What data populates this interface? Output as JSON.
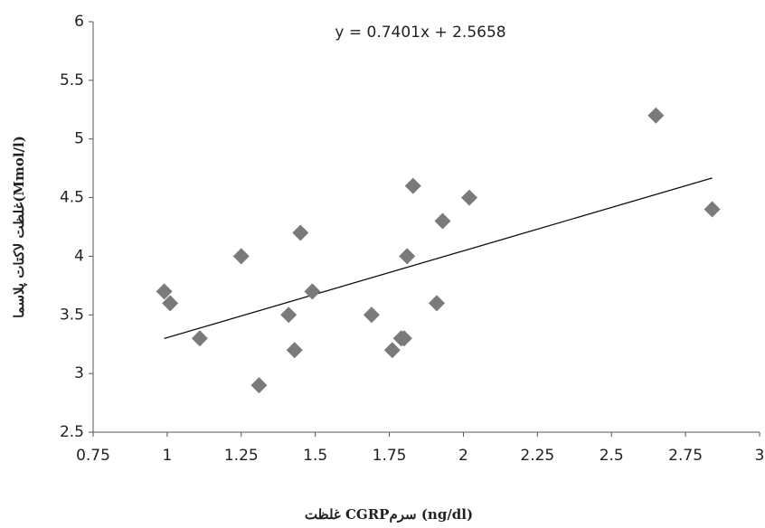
{
  "chart_data": {
    "type": "scatter",
    "x_label": "غلظت CGRPسرم  (ng/dl)",
    "y_label": "غلظت لاکتات پلاسما(Mmol/l)",
    "x": [
      0.99,
      1.01,
      1.11,
      1.25,
      1.31,
      1.41,
      1.43,
      1.45,
      1.49,
      1.69,
      1.76,
      1.79,
      1.8,
      1.81,
      1.83,
      1.91,
      1.93,
      2.02,
      2.65,
      2.84
    ],
    "values": [
      3.7,
      3.6,
      3.3,
      4.0,
      2.9,
      3.5,
      3.2,
      4.2,
      3.7,
      3.5,
      3.2,
      3.3,
      3.3,
      4.0,
      4.6,
      3.6,
      4.3,
      4.5,
      5.2,
      4.4
    ],
    "color": "#7a7a7a",
    "trendline": {
      "label": "y = 0.7401x + 2.5658",
      "slope": 0.7401,
      "intercept": 2.5658,
      "color": "#111111"
    },
    "xlim": [
      0.75,
      3
    ],
    "xticks": [
      0.75,
      1,
      1.25,
      1.5,
      1.75,
      2,
      2.25,
      2.5,
      2.75,
      3
    ],
    "ylim": [
      2.5,
      6
    ],
    "yticks": [
      2.5,
      3,
      3.5,
      4,
      4.5,
      5,
      5.5,
      6
    ]
  }
}
